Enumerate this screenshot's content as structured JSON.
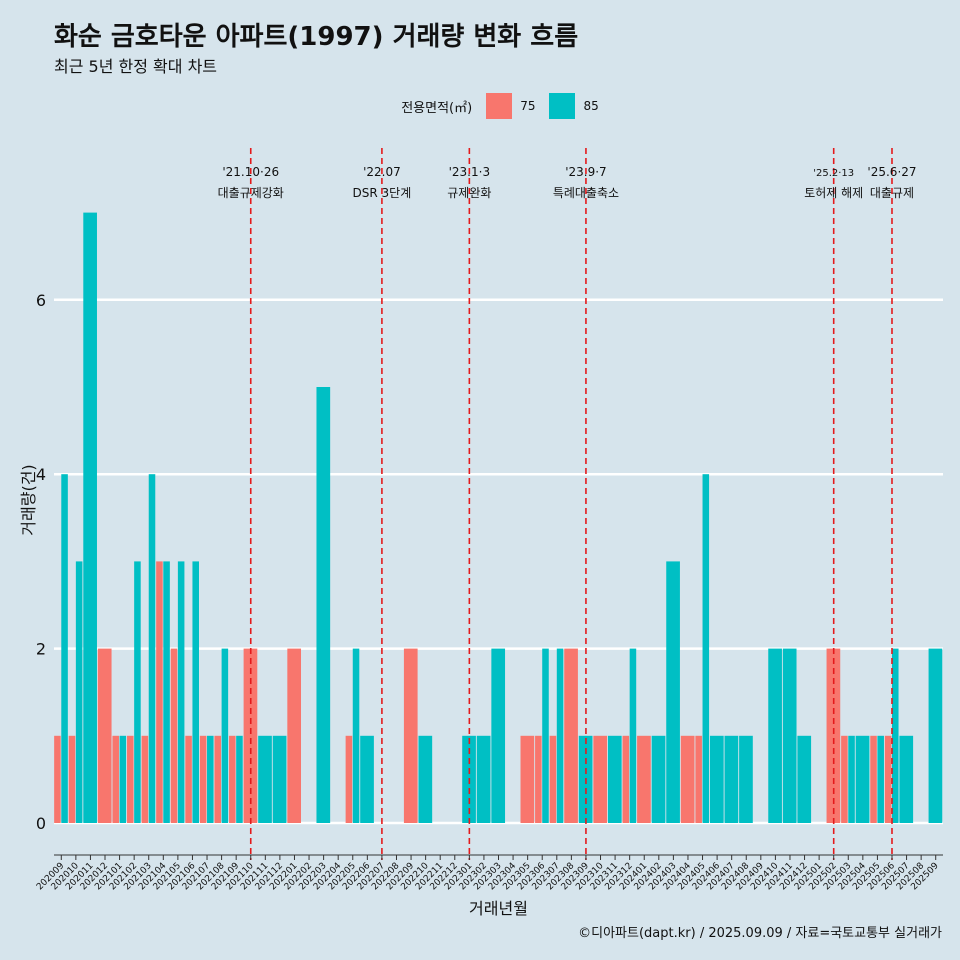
{
  "title": "화순 금호타운 아파트(1997) 거래량 변화 흐름",
  "subtitle": "최근 5년 한정 확대 차트",
  "legend_title": "전용면적(㎡)",
  "caption": "©디아파트(dapt.kr) / 2025.09.09 / 자료=국토교통부 실거래가",
  "colors": {
    "background": "#d6e4ec",
    "s75": "#f8766d",
    "s85": "#00bfc4",
    "event_line": "#e41a1c",
    "grid": "#ffffff"
  },
  "chart_data": {
    "type": "bar",
    "xlabel": "거래년월",
    "ylabel": "거래량(건)",
    "ylim": [
      0,
      7
    ],
    "y_ticks": [
      0,
      2,
      4,
      6
    ],
    "categories": [
      "202009",
      "202010",
      "202011",
      "202012",
      "202101",
      "202102",
      "202103",
      "202104",
      "202105",
      "202106",
      "202107",
      "202108",
      "202109",
      "202110",
      "202111",
      "202112",
      "202201",
      "202202",
      "202203",
      "202204",
      "202205",
      "202206",
      "202207",
      "202208",
      "202209",
      "202210",
      "202211",
      "202212",
      "202301",
      "202302",
      "202303",
      "202304",
      "202305",
      "202306",
      "202307",
      "202308",
      "202309",
      "202310",
      "202311",
      "202312",
      "202401",
      "202402",
      "202403",
      "202404",
      "202405",
      "202406",
      "202407",
      "202408",
      "202409",
      "202410",
      "202411",
      "202412",
      "202501",
      "202502",
      "202503",
      "202504",
      "202505",
      "202506",
      "202507",
      "202508",
      "202509"
    ],
    "series": [
      {
        "name": "75",
        "values": [
          1,
          1,
          0,
          2,
          1,
          1,
          1,
          3,
          2,
          1,
          1,
          1,
          1,
          2,
          0,
          0,
          2,
          0,
          0,
          0,
          1,
          0,
          0,
          0,
          2,
          0,
          0,
          0,
          0,
          0,
          0,
          0,
          1,
          1,
          1,
          2,
          0,
          1,
          0,
          1,
          1,
          0,
          0,
          1,
          1,
          0,
          0,
          0,
          0,
          0,
          0,
          0,
          0,
          2,
          1,
          0,
          1,
          1,
          0,
          0,
          0
        ]
      },
      {
        "name": "85",
        "values": [
          4,
          3,
          7,
          0,
          1,
          3,
          4,
          3,
          3,
          3,
          1,
          2,
          1,
          0,
          1,
          1,
          0,
          0,
          5,
          0,
          2,
          1,
          0,
          0,
          0,
          1,
          0,
          0,
          1,
          1,
          2,
          0,
          0,
          2,
          2,
          0,
          1,
          0,
          1,
          2,
          0,
          1,
          3,
          0,
          4,
          1,
          1,
          1,
          0,
          2,
          2,
          1,
          0,
          0,
          1,
          1,
          1,
          2,
          1,
          0,
          2
        ]
      }
    ],
    "events": [
      {
        "date": "'21.10·26",
        "label": "대출규제강화",
        "category": "202110"
      },
      {
        "date": "'22.07",
        "label": "DSR 3단계",
        "category": "202207"
      },
      {
        "date": "'23.1·3",
        "label": "규제완화",
        "category": "202301"
      },
      {
        "date": "'23.9·7",
        "label": "특례대출축소",
        "category": "202309"
      },
      {
        "date": "'25.2·13",
        "label": "토허제 해제",
        "category": "202502"
      },
      {
        "date": "'25.6·27",
        "label": "대출규제",
        "category": "202506"
      }
    ]
  }
}
